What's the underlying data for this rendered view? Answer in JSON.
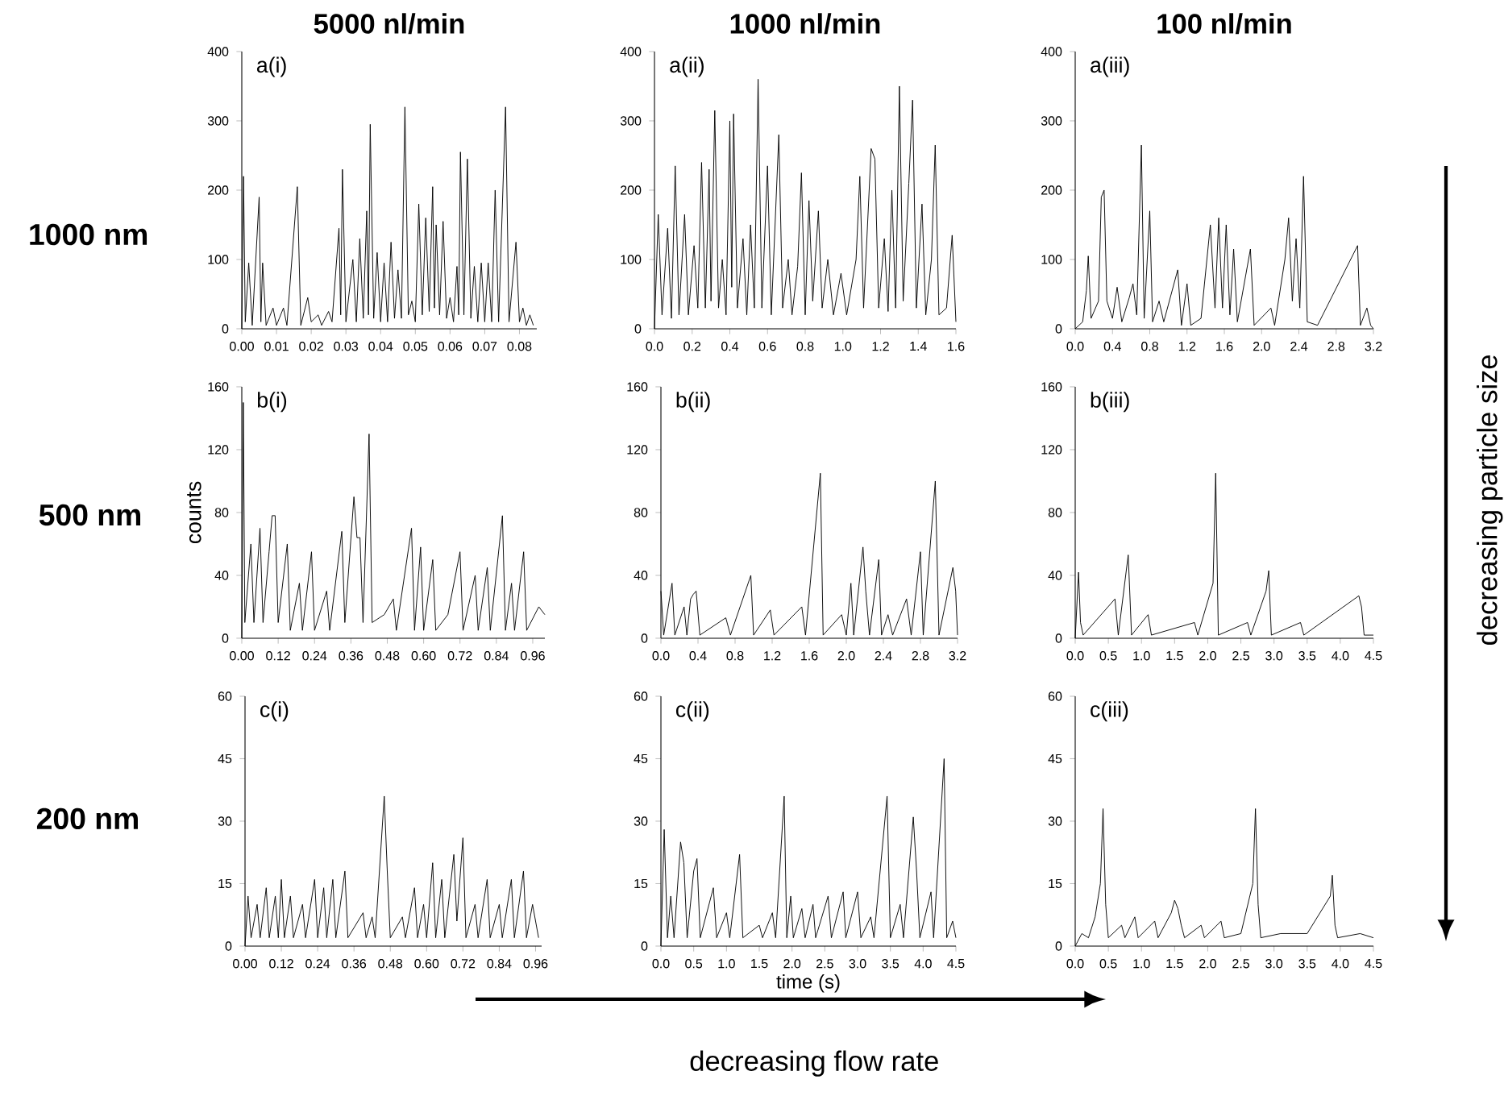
{
  "chart_data": [
    {
      "type": "line",
      "title": "5000 nl/min",
      "annotations": [
        "a(i)",
        "1000 nm"
      ],
      "color": "#000000",
      "marker": "none",
      "xlim": [
        0,
        0.085
      ],
      "ylim": [
        0,
        400
      ],
      "yticks": [
        0,
        100,
        200,
        300,
        400
      ],
      "xticks": [
        {
          "value": 0,
          "label": "0.00"
        },
        {
          "value": 0.01,
          "label": "0.01"
        },
        {
          "value": 0.02,
          "label": "0.02"
        },
        {
          "value": 0.03,
          "label": "0.03"
        },
        {
          "value": 0.04,
          "label": "0.04"
        },
        {
          "value": 0.05,
          "label": "0.05"
        },
        {
          "value": 0.06,
          "label": "0.06"
        },
        {
          "value": 0.07,
          "label": "0.07"
        },
        {
          "value": 0.08,
          "label": "0.08"
        }
      ],
      "x": [
        0,
        0.0005,
        0.001,
        0.002,
        0.003,
        0.005,
        0.0055,
        0.006,
        0.007,
        0.009,
        0.01,
        0.012,
        0.013,
        0.016,
        0.017,
        0.019,
        0.02,
        0.022,
        0.023,
        0.025,
        0.026,
        0.028,
        0.0285,
        0.029,
        0.03,
        0.032,
        0.033,
        0.034,
        0.035,
        0.036,
        0.0365,
        0.037,
        0.038,
        0.039,
        0.04,
        0.041,
        0.042,
        0.043,
        0.044,
        0.045,
        0.046,
        0.047,
        0.048,
        0.049,
        0.05,
        0.051,
        0.052,
        0.053,
        0.054,
        0.055,
        0.0555,
        0.056,
        0.057,
        0.058,
        0.059,
        0.06,
        0.061,
        0.062,
        0.0625,
        0.063,
        0.064,
        0.065,
        0.066,
        0.067,
        0.068,
        0.069,
        0.07,
        0.071,
        0.072,
        0.073,
        0.074,
        0.076,
        0.077,
        0.079,
        0.08,
        0.081,
        0.082,
        0.083,
        0.084
      ],
      "values": [
        0,
        220,
        10,
        95,
        5,
        190,
        10,
        95,
        5,
        30,
        5,
        30,
        5,
        205,
        5,
        45,
        10,
        20,
        5,
        25,
        10,
        145,
        20,
        230,
        10,
        100,
        10,
        130,
        15,
        170,
        20,
        295,
        15,
        110,
        10,
        95,
        10,
        125,
        15,
        85,
        15,
        320,
        20,
        40,
        10,
        180,
        20,
        160,
        25,
        205,
        30,
        150,
        20,
        155,
        15,
        45,
        10,
        90,
        20,
        255,
        20,
        245,
        15,
        90,
        10,
        95,
        10,
        95,
        10,
        200,
        10,
        320,
        10,
        125,
        10,
        30,
        5,
        20,
        5
      ]
    },
    {
      "type": "line",
      "title": "1000 nl/min",
      "annotations": [
        "a(ii)"
      ],
      "color": "#000000",
      "marker": "none",
      "xlim": [
        0,
        1.6
      ],
      "ylim": [
        0,
        400
      ],
      "yticks": [
        0,
        100,
        200,
        300,
        400
      ],
      "xticks": [
        {
          "value": 0,
          "label": "0.0"
        },
        {
          "value": 0.2,
          "label": "0.2"
        },
        {
          "value": 0.4,
          "label": "0.4"
        },
        {
          "value": 0.6,
          "label": "0.6"
        },
        {
          "value": 0.8,
          "label": "0.8"
        },
        {
          "value": 1,
          "label": "1.0"
        },
        {
          "value": 1.2,
          "label": "1.2"
        },
        {
          "value": 1.4,
          "label": "1.4"
        },
        {
          "value": 1.6,
          "label": "1.6"
        }
      ],
      "x": [
        0,
        0.02,
        0.04,
        0.07,
        0.09,
        0.11,
        0.13,
        0.16,
        0.18,
        0.21,
        0.23,
        0.25,
        0.27,
        0.29,
        0.3,
        0.32,
        0.34,
        0.36,
        0.38,
        0.4,
        0.41,
        0.42,
        0.44,
        0.47,
        0.49,
        0.51,
        0.53,
        0.55,
        0.57,
        0.6,
        0.62,
        0.66,
        0.68,
        0.71,
        0.73,
        0.76,
        0.78,
        0.8,
        0.82,
        0.84,
        0.87,
        0.89,
        0.92,
        0.95,
        0.99,
        1.02,
        1.07,
        1.09,
        1.11,
        1.15,
        1.17,
        1.19,
        1.22,
        1.24,
        1.26,
        1.28,
        1.3,
        1.32,
        1.35,
        1.37,
        1.39,
        1.42,
        1.44,
        1.47,
        1.49,
        1.51,
        1.55,
        1.58,
        1.6
      ],
      "values": [
        0,
        165,
        20,
        145,
        15,
        235,
        20,
        165,
        20,
        120,
        30,
        240,
        30,
        230,
        40,
        315,
        30,
        100,
        20,
        300,
        60,
        310,
        30,
        130,
        20,
        150,
        30,
        360,
        30,
        235,
        20,
        280,
        30,
        100,
        20,
        90,
        225,
        20,
        185,
        40,
        170,
        30,
        100,
        20,
        80,
        20,
        100,
        220,
        30,
        260,
        245,
        30,
        130,
        25,
        200,
        30,
        350,
        40,
        210,
        330,
        30,
        180,
        20,
        100,
        265,
        20,
        30,
        135,
        10
      ]
    },
    {
      "type": "line",
      "title": "100 nl/min",
      "annotations": [
        "a(iii)"
      ],
      "color": "#000000",
      "marker": "none",
      "xlim": [
        0,
        3.2
      ],
      "ylim": [
        0,
        400
      ],
      "yticks": [
        0,
        100,
        200,
        300,
        400
      ],
      "xticks": [
        {
          "value": 0,
          "label": "0.0"
        },
        {
          "value": 0.4,
          "label": "0.4"
        },
        {
          "value": 0.8,
          "label": "0.8"
        },
        {
          "value": 1.2,
          "label": "1.2"
        },
        {
          "value": 1.6,
          "label": "1.6"
        },
        {
          "value": 2,
          "label": "2.0"
        },
        {
          "value": 2.4,
          "label": "2.4"
        },
        {
          "value": 2.8,
          "label": "2.8"
        },
        {
          "value": 3.2,
          "label": "3.2"
        }
      ],
      "x": [
        0,
        0.08,
        0.12,
        0.14,
        0.17,
        0.25,
        0.28,
        0.31,
        0.34,
        0.4,
        0.45,
        0.5,
        0.58,
        0.62,
        0.66,
        0.71,
        0.74,
        0.8,
        0.83,
        0.9,
        0.95,
        1.1,
        1.14,
        1.2,
        1.24,
        1.35,
        1.45,
        1.5,
        1.54,
        1.58,
        1.62,
        1.66,
        1.7,
        1.74,
        1.88,
        1.92,
        2.1,
        2.14,
        2.25,
        2.29,
        2.33,
        2.37,
        2.41,
        2.45,
        2.49,
        2.6,
        3.03,
        3.06,
        3.13,
        3.17,
        3.2
      ],
      "values": [
        0,
        10,
        55,
        105,
        15,
        40,
        190,
        200,
        40,
        15,
        60,
        10,
        45,
        65,
        20,
        265,
        15,
        170,
        10,
        40,
        10,
        85,
        5,
        65,
        5,
        15,
        150,
        30,
        160,
        30,
        150,
        20,
        115,
        10,
        115,
        5,
        30,
        5,
        100,
        160,
        40,
        130,
        30,
        220,
        10,
        5,
        120,
        5,
        30,
        5,
        0
      ]
    },
    {
      "type": "line",
      "ylabel": "counts",
      "annotations": [
        "b(i)",
        "500 nm"
      ],
      "color": "#000000",
      "marker": "none",
      "xlim": [
        0,
        1.0
      ],
      "ylim": [
        0,
        160
      ],
      "yticks": [
        0,
        40,
        80,
        120,
        160
      ],
      "xticks": [
        {
          "value": 0,
          "label": "0.00"
        },
        {
          "value": 0.12,
          "label": "0.12"
        },
        {
          "value": 0.24,
          "label": "0.24"
        },
        {
          "value": 0.36,
          "label": "0.36"
        },
        {
          "value": 0.48,
          "label": "0.48"
        },
        {
          "value": 0.6,
          "label": "0.60"
        },
        {
          "value": 0.72,
          "label": "0.72"
        },
        {
          "value": 0.84,
          "label": "0.84"
        },
        {
          "value": 0.96,
          "label": "0.96"
        }
      ],
      "x": [
        0,
        0.005,
        0.01,
        0.03,
        0.04,
        0.06,
        0.07,
        0.09,
        0.1,
        0.11,
        0.12,
        0.15,
        0.16,
        0.19,
        0.2,
        0.23,
        0.24,
        0.28,
        0.29,
        0.33,
        0.34,
        0.37,
        0.38,
        0.39,
        0.4,
        0.42,
        0.43,
        0.47,
        0.5,
        0.51,
        0.56,
        0.57,
        0.59,
        0.6,
        0.63,
        0.64,
        0.68,
        0.72,
        0.73,
        0.77,
        0.78,
        0.81,
        0.82,
        0.86,
        0.87,
        0.89,
        0.9,
        0.93,
        0.94,
        0.98,
        1.0
      ],
      "values": [
        0,
        150,
        10,
        60,
        10,
        70,
        10,
        55,
        78,
        78,
        10,
        60,
        5,
        35,
        5,
        55,
        5,
        30,
        5,
        68,
        10,
        90,
        64,
        64,
        10,
        130,
        10,
        15,
        25,
        5,
        70,
        5,
        58,
        5,
        50,
        5,
        15,
        55,
        5,
        40,
        5,
        45,
        5,
        78,
        5,
        35,
        5,
        55,
        5,
        20,
        15
      ]
    },
    {
      "type": "line",
      "annotations": [
        "b(ii)"
      ],
      "color": "#000000",
      "marker": "none",
      "xlim": [
        0,
        3.2
      ],
      "ylim": [
        0,
        160
      ],
      "yticks": [
        0,
        40,
        80,
        120,
        160
      ],
      "xticks": [
        {
          "value": 0,
          "label": "0.0"
        },
        {
          "value": 0.4,
          "label": "0.4"
        },
        {
          "value": 0.8,
          "label": "0.8"
        },
        {
          "value": 1.2,
          "label": "1.2"
        },
        {
          "value": 1.6,
          "label": "1.6"
        },
        {
          "value": 2,
          "label": "2.0"
        },
        {
          "value": 2.4,
          "label": "2.4"
        },
        {
          "value": 2.8,
          "label": "2.8"
        },
        {
          "value": 3.2,
          "label": "3.2"
        }
      ],
      "x": [
        0,
        0.03,
        0.12,
        0.15,
        0.25,
        0.28,
        0.32,
        0.35,
        0.38,
        0.42,
        0.7,
        0.75,
        0.97,
        1.0,
        1.18,
        1.22,
        1.52,
        1.56,
        1.72,
        1.75,
        1.95,
        2.0,
        2.05,
        2.08,
        2.18,
        2.21,
        2.25,
        2.35,
        2.38,
        2.45,
        2.5,
        2.65,
        2.7,
        2.8,
        2.83,
        2.96,
        3.0,
        3.15,
        3.18,
        3.2
      ],
      "values": [
        30,
        2,
        35,
        2,
        20,
        2,
        25,
        28,
        30,
        2,
        13,
        2,
        40,
        2,
        18,
        2,
        20,
        2,
        105,
        2,
        15,
        2,
        35,
        2,
        58,
        30,
        2,
        50,
        2,
        15,
        2,
        25,
        2,
        55,
        2,
        100,
        2,
        45,
        30,
        2
      ]
    },
    {
      "type": "line",
      "annotations": [
        "b(iii)",
        "decreasing particle size"
      ],
      "color": "#000000",
      "marker": "none",
      "xlim": [
        0,
        4.5
      ],
      "ylim": [
        0,
        160
      ],
      "yticks": [
        0,
        40,
        80,
        120,
        160
      ],
      "xticks": [
        {
          "value": 0,
          "label": "0.0"
        },
        {
          "value": 0.5,
          "label": "0.5"
        },
        {
          "value": 1,
          "label": "1.0"
        },
        {
          "value": 1.5,
          "label": "1.5"
        },
        {
          "value": 2,
          "label": "2.0"
        },
        {
          "value": 2.5,
          "label": "2.5"
        },
        {
          "value": 3,
          "label": "3.0"
        },
        {
          "value": 3.5,
          "label": "3.5"
        },
        {
          "value": 4,
          "label": "4.0"
        },
        {
          "value": 4.5,
          "label": "4.5"
        }
      ],
      "x": [
        0,
        0.05,
        0.08,
        0.12,
        0.6,
        0.65,
        0.8,
        0.85,
        1.1,
        1.15,
        1.8,
        1.85,
        2.08,
        2.12,
        2.16,
        2.6,
        2.65,
        2.88,
        2.92,
        2.96,
        3.4,
        3.45,
        4.28,
        4.32,
        4.36,
        4.5
      ],
      "values": [
        0,
        42,
        10,
        2,
        25,
        2,
        53,
        2,
        15,
        2,
        10,
        2,
        35,
        105,
        2,
        10,
        2,
        30,
        43,
        2,
        10,
        2,
        27,
        20,
        2,
        2
      ]
    },
    {
      "type": "line",
      "annotations": [
        "c(i)",
        "200 nm"
      ],
      "color": "#000000",
      "marker": "none",
      "xlim": [
        0,
        0.98
      ],
      "ylim": [
        0,
        60
      ],
      "yticks": [
        0,
        15,
        30,
        45,
        60
      ],
      "xticks": [
        {
          "value": 0,
          "label": "0.00"
        },
        {
          "value": 0.12,
          "label": "0.12"
        },
        {
          "value": 0.24,
          "label": "0.24"
        },
        {
          "value": 0.36,
          "label": "0.36"
        },
        {
          "value": 0.48,
          "label": "0.48"
        },
        {
          "value": 0.6,
          "label": "0.60"
        },
        {
          "value": 0.72,
          "label": "0.72"
        },
        {
          "value": 0.84,
          "label": "0.84"
        },
        {
          "value": 0.96,
          "label": "0.96"
        }
      ],
      "x": [
        0,
        0.01,
        0.02,
        0.04,
        0.05,
        0.07,
        0.08,
        0.1,
        0.11,
        0.12,
        0.13,
        0.15,
        0.16,
        0.19,
        0.2,
        0.23,
        0.24,
        0.26,
        0.27,
        0.29,
        0.3,
        0.33,
        0.34,
        0.39,
        0.4,
        0.42,
        0.43,
        0.46,
        0.47,
        0.48,
        0.52,
        0.53,
        0.56,
        0.57,
        0.59,
        0.6,
        0.62,
        0.63,
        0.65,
        0.66,
        0.69,
        0.7,
        0.72,
        0.73,
        0.76,
        0.77,
        0.8,
        0.81,
        0.84,
        0.85,
        0.88,
        0.89,
        0.92,
        0.93,
        0.95,
        0.97
      ],
      "values": [
        0,
        12,
        2,
        10,
        2,
        14,
        2,
        12,
        2,
        16,
        2,
        12,
        2,
        10,
        2,
        16,
        2,
        14,
        2,
        16,
        2,
        18,
        2,
        8,
        2,
        7,
        2,
        36,
        18,
        2,
        7,
        2,
        14,
        2,
        10,
        2,
        20,
        2,
        16,
        2,
        22,
        6,
        26,
        2,
        10,
        2,
        16,
        2,
        10,
        2,
        16,
        2,
        18,
        2,
        10,
        2
      ]
    },
    {
      "type": "line",
      "xlabel": "time (s)",
      "annotations": [
        "c(ii)",
        "decreasing flow rate"
      ],
      "color": "#000000",
      "marker": "none",
      "xlim": [
        0,
        4.5
      ],
      "ylim": [
        0,
        60
      ],
      "yticks": [
        0,
        15,
        30,
        45,
        60
      ],
      "xticks": [
        {
          "value": 0,
          "label": "0.0"
        },
        {
          "value": 0.5,
          "label": "0.5"
        },
        {
          "value": 1,
          "label": "1.0"
        },
        {
          "value": 1.5,
          "label": "1.5"
        },
        {
          "value": 2,
          "label": "2.0"
        },
        {
          "value": 2.5,
          "label": "2.5"
        },
        {
          "value": 3,
          "label": "3.0"
        },
        {
          "value": 3.5,
          "label": "3.5"
        },
        {
          "value": 4,
          "label": "4.0"
        },
        {
          "value": 4.5,
          "label": "4.5"
        }
      ],
      "x": [
        0,
        0.05,
        0.1,
        0.15,
        0.2,
        0.3,
        0.35,
        0.4,
        0.5,
        0.55,
        0.6,
        0.8,
        0.85,
        1.0,
        1.05,
        1.2,
        1.25,
        1.5,
        1.55,
        1.7,
        1.75,
        1.88,
        1.92,
        1.98,
        2.02,
        2.15,
        2.2,
        2.32,
        2.36,
        2.55,
        2.6,
        2.78,
        2.82,
        3.0,
        3.05,
        3.2,
        3.25,
        3.45,
        3.5,
        3.65,
        3.7,
        3.85,
        3.9,
        3.95,
        4.12,
        4.16,
        4.32,
        4.36,
        4.45,
        4.5
      ],
      "values": [
        0,
        28,
        2,
        12,
        2,
        25,
        20,
        2,
        18,
        21,
        2,
        14,
        2,
        8,
        2,
        22,
        2,
        5,
        2,
        8,
        2,
        36,
        2,
        12,
        2,
        9,
        2,
        10,
        2,
        12,
        2,
        13,
        2,
        13,
        2,
        7,
        2,
        36,
        2,
        10,
        2,
        31,
        18,
        2,
        13,
        2,
        45,
        2,
        6,
        2
      ]
    },
    {
      "type": "line",
      "annotations": [
        "c(iii)"
      ],
      "color": "#000000",
      "marker": "none",
      "xlim": [
        0,
        4.5
      ],
      "ylim": [
        0,
        60
      ],
      "yticks": [
        0,
        15,
        30,
        45,
        60
      ],
      "xticks": [
        {
          "value": 0,
          "label": "0.0"
        },
        {
          "value": 0.5,
          "label": "0.5"
        },
        {
          "value": 1,
          "label": "1.0"
        },
        {
          "value": 1.5,
          "label": "1.5"
        },
        {
          "value": 2,
          "label": "2.0"
        },
        {
          "value": 2.5,
          "label": "2.5"
        },
        {
          "value": 3,
          "label": "3.0"
        },
        {
          "value": 3.5,
          "label": "3.5"
        },
        {
          "value": 4,
          "label": "4.0"
        },
        {
          "value": 4.5,
          "label": "4.5"
        }
      ],
      "x": [
        0,
        0.1,
        0.2,
        0.3,
        0.38,
        0.42,
        0.46,
        0.5,
        0.7,
        0.75,
        0.9,
        0.95,
        1.2,
        1.25,
        1.45,
        1.5,
        1.55,
        1.6,
        1.65,
        1.9,
        1.95,
        2.2,
        2.25,
        2.5,
        2.68,
        2.72,
        2.76,
        2.8,
        3.1,
        3.5,
        3.85,
        3.88,
        3.92,
        3.96,
        4.3,
        4.5
      ],
      "values": [
        0,
        3,
        2,
        7,
        15,
        33,
        10,
        2,
        5,
        2,
        7,
        2,
        6,
        2,
        8,
        11,
        9,
        5,
        2,
        5,
        2,
        6,
        2,
        3,
        15,
        33,
        10,
        2,
        3,
        3,
        12,
        17,
        5,
        2,
        3,
        2
      ]
    }
  ]
}
